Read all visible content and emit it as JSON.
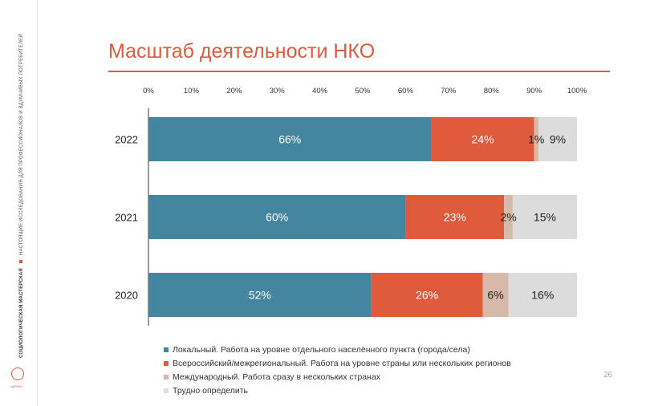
{
  "page": {
    "title": "Масштаб деятельности НКО",
    "page_number": "26",
    "side_band": {
      "org": "СОЦИОЛОГИЧЕСКАЯ МАСТЕРСКАЯ",
      "tagline": "НАСТОЯЩИЕ ИССЛЕДОВАНИЯ ДЛЯ ПРОФЕССИОНАЛОВ И ВДУМЧИВЫХ ПОТРЕБИТЕЛЕЙ",
      "logo_text": "ЦИРКОН"
    }
  },
  "chart_data": {
    "type": "bar",
    "orientation": "horizontal",
    "stacked": true,
    "title": "",
    "xlabel": "",
    "ylabel": "",
    "xlim": [
      0,
      100
    ],
    "x_ticks": [
      "0%",
      "10%",
      "20%",
      "30%",
      "40%",
      "50%",
      "60%",
      "70%",
      "80%",
      "90%",
      "100%"
    ],
    "categories": [
      "2022",
      "2021",
      "2020"
    ],
    "grid": false,
    "legend_position": "bottom",
    "series": [
      {
        "name": "Локальный. Работа на уровне отдельного населённого пункта (города/села)",
        "values": [
          66,
          60,
          52
        ],
        "labels": [
          "66%",
          "60%",
          "52%"
        ],
        "color": "#44869f",
        "label_color": "#ffffff"
      },
      {
        "name": "Всероссийский/межрегиональный. Работа на уровне страны или нескольких регионов",
        "values": [
          24,
          23,
          26
        ],
        "labels": [
          "24%",
          "23%",
          "26%"
        ],
        "color": "#e05a3c",
        "label_color": "#ffffff"
      },
      {
        "name": "Международный. Работа сразу в нескольких странах",
        "values": [
          1,
          2,
          6
        ],
        "labels": [
          "1%",
          "2%",
          "6%"
        ],
        "color": "#d7b9a9",
        "label_color": "#222222"
      },
      {
        "name": "Трудно определить",
        "values": [
          9,
          15,
          16
        ],
        "labels": [
          "9%",
          "15%",
          "16%"
        ],
        "color": "#dcdcdc",
        "label_color": "#222222"
      }
    ]
  }
}
